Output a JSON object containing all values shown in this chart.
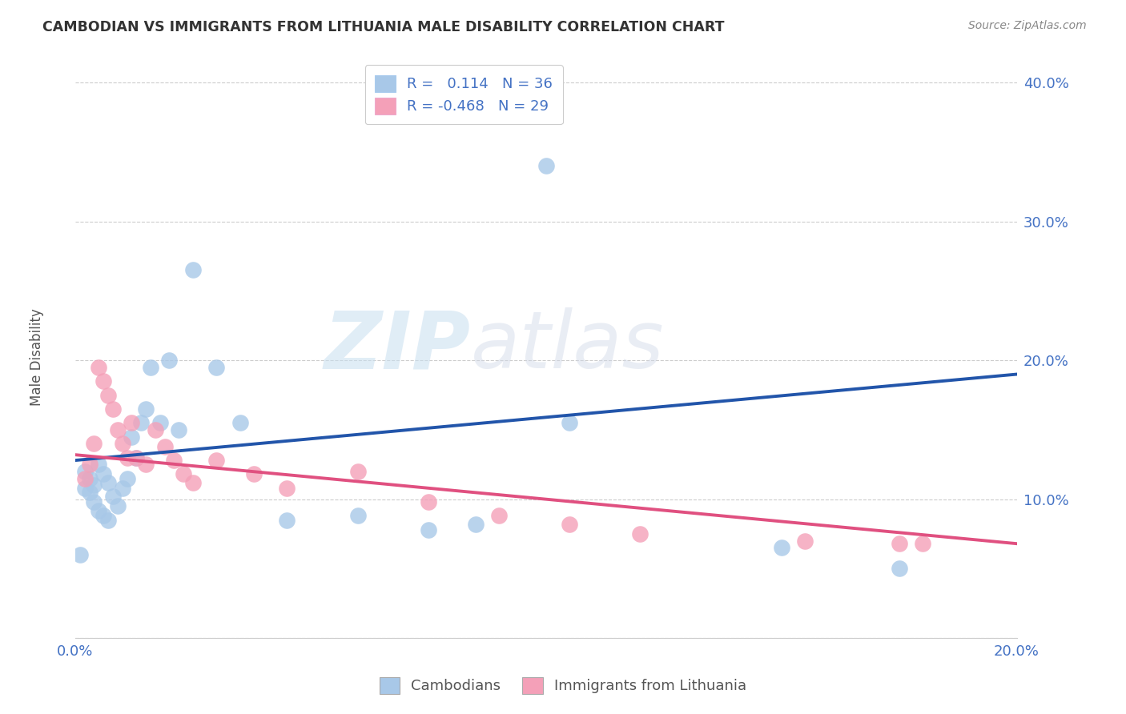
{
  "title": "CAMBODIAN VS IMMIGRANTS FROM LITHUANIA MALE DISABILITY CORRELATION CHART",
  "source": "Source: ZipAtlas.com",
  "ylabel": "Male Disability",
  "x_min": 0.0,
  "x_max": 0.2,
  "y_min": 0.0,
  "y_max": 0.42,
  "x_ticks": [
    0.0,
    0.05,
    0.1,
    0.15,
    0.2
  ],
  "x_tick_labels": [
    "0.0%",
    "",
    "",
    "",
    "20.0%"
  ],
  "y_ticks": [
    0.0,
    0.1,
    0.2,
    0.3,
    0.4
  ],
  "y_tick_labels": [
    "",
    "10.0%",
    "20.0%",
    "30.0%",
    "40.0%"
  ],
  "blue_color": "#a8c8e8",
  "blue_line_color": "#2255aa",
  "pink_color": "#f4a0b8",
  "pink_line_color": "#e05080",
  "cambodian_R": 0.114,
  "cambodian_N": 36,
  "lithuania_R": -0.468,
  "lithuania_N": 29,
  "cambodian_scatter_x": [
    0.001,
    0.002,
    0.002,
    0.003,
    0.003,
    0.004,
    0.004,
    0.005,
    0.005,
    0.006,
    0.006,
    0.007,
    0.007,
    0.008,
    0.009,
    0.01,
    0.011,
    0.012,
    0.013,
    0.014,
    0.015,
    0.016,
    0.018,
    0.02,
    0.022,
    0.025,
    0.03,
    0.035,
    0.045,
    0.06,
    0.075,
    0.085,
    0.105,
    0.15,
    0.175,
    0.1
  ],
  "cambodian_scatter_y": [
    0.06,
    0.12,
    0.108,
    0.115,
    0.105,
    0.11,
    0.098,
    0.125,
    0.092,
    0.118,
    0.088,
    0.112,
    0.085,
    0.102,
    0.095,
    0.108,
    0.115,
    0.145,
    0.13,
    0.155,
    0.165,
    0.195,
    0.155,
    0.2,
    0.15,
    0.265,
    0.195,
    0.155,
    0.085,
    0.088,
    0.078,
    0.082,
    0.155,
    0.065,
    0.05,
    0.34
  ],
  "lithuania_scatter_x": [
    0.002,
    0.003,
    0.004,
    0.005,
    0.006,
    0.007,
    0.008,
    0.009,
    0.01,
    0.011,
    0.012,
    0.013,
    0.015,
    0.017,
    0.019,
    0.021,
    0.023,
    0.025,
    0.03,
    0.038,
    0.045,
    0.06,
    0.075,
    0.09,
    0.105,
    0.12,
    0.155,
    0.175,
    0.18
  ],
  "lithuania_scatter_y": [
    0.115,
    0.125,
    0.14,
    0.195,
    0.185,
    0.175,
    0.165,
    0.15,
    0.14,
    0.13,
    0.155,
    0.13,
    0.125,
    0.15,
    0.138,
    0.128,
    0.118,
    0.112,
    0.128,
    0.118,
    0.108,
    0.12,
    0.098,
    0.088,
    0.082,
    0.075,
    0.07,
    0.068,
    0.068
  ],
  "blue_trendline_x": [
    0.0,
    0.2
  ],
  "blue_trendline_y": [
    0.128,
    0.19
  ],
  "pink_trendline_x": [
    0.0,
    0.2
  ],
  "pink_trendline_y": [
    0.132,
    0.068
  ],
  "watermark_line1": "ZIP",
  "watermark_line2": "atlas",
  "legend_label_1": "Cambodians",
  "legend_label_2": "Immigrants from Lithuania",
  "grid_color": "#cccccc",
  "background_color": "#ffffff",
  "tick_color": "#4472c4",
  "title_color": "#333333",
  "source_color": "#888888",
  "ylabel_color": "#555555"
}
